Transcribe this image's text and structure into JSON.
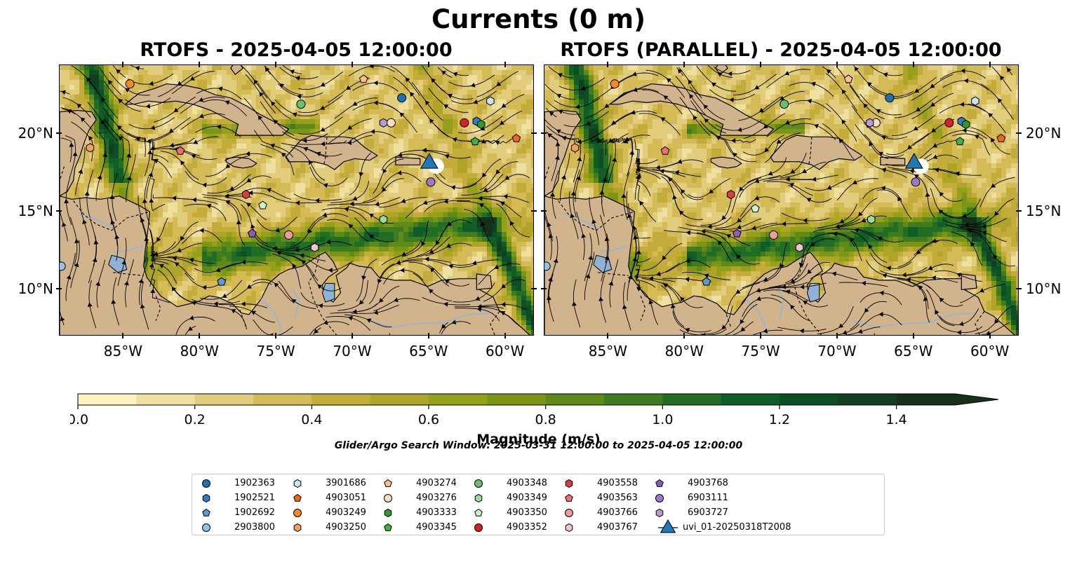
{
  "figure": {
    "suptitle": "Currents (0 m)",
    "panels": [
      {
        "id": "rtofs",
        "title": "RTOFS - 2025-04-05 12:00:00"
      },
      {
        "id": "rtofs-parallel",
        "title": "RTOFS (PARALLEL) - 2025-04-05 12:00:00"
      }
    ],
    "colors": {
      "land": "#d2b48c",
      "water": "#8fb2d8",
      "river": "#9fb4cc",
      "coast": "#000000"
    }
  },
  "map": {
    "lon_range": [
      -89.2,
      -58.1
    ],
    "lat_range": [
      7.0,
      24.4
    ],
    "lon_ticks": [
      {
        "value": -85,
        "label": "85°W"
      },
      {
        "value": -80,
        "label": "80°W"
      },
      {
        "value": -75,
        "label": "75°W"
      },
      {
        "value": -70,
        "label": "70°W"
      },
      {
        "value": -65,
        "label": "65°W"
      },
      {
        "value": -60,
        "label": "60°W"
      }
    ],
    "lat_ticks": [
      {
        "value": 20,
        "label": "20°N"
      },
      {
        "value": 15,
        "label": "15°N"
      },
      {
        "value": 10,
        "label": "10°N"
      }
    ]
  },
  "chart_data": {
    "type": "heatmap",
    "variable": "Current magnitude with streamlines",
    "colorbar": {
      "label": "Magnitude (m/s)",
      "min": 0.0,
      "max": 1.5,
      "extend": "max",
      "ticks": [
        {
          "value": 0.0,
          "label": "0.0"
        },
        {
          "value": 0.2,
          "label": "0.2"
        },
        {
          "value": 0.4,
          "label": "0.4"
        },
        {
          "value": 0.6,
          "label": "0.6"
        },
        {
          "value": 0.8,
          "label": "0.8"
        },
        {
          "value": 1.0,
          "label": "1.0"
        },
        {
          "value": 1.2,
          "label": "1.2"
        },
        {
          "value": 1.4,
          "label": "1.4"
        }
      ],
      "colors": [
        "#fbf2bf",
        "#efe0a0",
        "#e2cd7c",
        "#d4bb55",
        "#c4ac3a",
        "#aea427",
        "#94a01a",
        "#7a9614",
        "#5f8a19",
        "#3f7c1f",
        "#226d24",
        "#0f5e27",
        "#0d4e25",
        "#123f20",
        "#16301a"
      ]
    },
    "search_window": "Glider/Argo Search Window: 2025-03-31 12:00:00 to 2025-04-05 12:00:00",
    "legend_placement": "bottom-center",
    "platforms": [
      {
        "id": "1902363",
        "marker": "circle",
        "color": "#1f6fb4",
        "positions": [
          [
            -66.8,
            22.3
          ],
          [
            -66.6,
            22.3
          ]
        ]
      },
      {
        "id": "1902521",
        "marker": "hexagon",
        "color": "#2f7ec3",
        "positions": [
          [
            -61.9,
            20.8
          ],
          [
            -61.9,
            20.8
          ]
        ]
      },
      {
        "id": "1902692",
        "marker": "pentagon",
        "color": "#5a9bd4",
        "positions": [
          [
            -78.6,
            10.5
          ],
          [
            -78.6,
            10.5
          ]
        ]
      },
      {
        "id": "2903800",
        "marker": "circle",
        "color": "#8ec3ea",
        "positions": [
          [
            -89.1,
            11.5
          ],
          [
            -89.1,
            11.5
          ]
        ]
      },
      {
        "id": "3901686",
        "marker": "hexagon",
        "color": "#c8e4f8",
        "positions": [
          [
            -61.0,
            22.1
          ],
          [
            -61.0,
            22.1
          ]
        ]
      },
      {
        "id": "4903051",
        "marker": "pentagon",
        "color": "#ee6a10",
        "positions": [
          [
            -59.3,
            19.7
          ],
          [
            -59.3,
            19.7
          ]
        ]
      },
      {
        "id": "4903249",
        "marker": "circle",
        "color": "#f5882a",
        "positions": [
          [
            -84.6,
            23.2
          ],
          [
            -84.6,
            23.2
          ]
        ]
      },
      {
        "id": "4903250",
        "marker": "hexagon",
        "color": "#f8a055",
        "positions": [
          [
            -87.2,
            19.1
          ],
          [
            -87.2,
            19.1
          ]
        ]
      },
      {
        "id": "4903274",
        "marker": "pentagon",
        "color": "#fbbf88",
        "positions": [
          [
            -69.3,
            23.5
          ],
          [
            -69.3,
            23.5
          ]
        ]
      },
      {
        "id": "4903276",
        "marker": "circle",
        "color": "#fde0c4",
        "positions": [
          [
            -67.5,
            20.7
          ],
          [
            -67.5,
            20.7
          ]
        ]
      },
      {
        "id": "4903333",
        "marker": "hexagon",
        "color": "#2e9a2e",
        "positions": [
          [
            -61.6,
            20.6
          ],
          [
            -61.6,
            20.6
          ]
        ]
      },
      {
        "id": "4903345",
        "marker": "pentagon",
        "color": "#3db33d",
        "positions": [
          [
            -62.0,
            19.5
          ],
          [
            -62.0,
            19.5
          ]
        ]
      },
      {
        "id": "4903348",
        "marker": "circle",
        "color": "#66c466",
        "positions": [
          [
            -73.4,
            21.9
          ],
          [
            -73.5,
            21.9
          ]
        ]
      },
      {
        "id": "4903349",
        "marker": "hexagon",
        "color": "#99dd99",
        "positions": [
          [
            -68.0,
            14.5
          ],
          [
            -67.8,
            14.5
          ]
        ]
      },
      {
        "id": "4903350",
        "marker": "pentagon",
        "color": "#ccf5cc",
        "positions": [
          [
            -75.9,
            15.4
          ],
          [
            -75.4,
            15.2
          ]
        ]
      },
      {
        "id": "4903352",
        "marker": "circle",
        "color": "#d62222",
        "positions": [
          [
            -62.7,
            20.7
          ],
          [
            -62.7,
            20.7
          ]
        ]
      },
      {
        "id": "4903558",
        "marker": "hexagon",
        "color": "#d84040",
        "positions": [
          [
            -77.0,
            16.1
          ],
          [
            -77.0,
            16.1
          ]
        ]
      },
      {
        "id": "4903563",
        "marker": "pentagon",
        "color": "#ee7070",
        "positions": [
          [
            -81.3,
            18.9
          ],
          [
            -81.3,
            18.9
          ]
        ]
      },
      {
        "id": "4903766",
        "marker": "circle",
        "color": "#f29b9b",
        "positions": [
          [
            -74.2,
            13.5
          ],
          [
            -74.2,
            13.5
          ]
        ]
      },
      {
        "id": "4903767",
        "marker": "hexagon",
        "color": "#fac4cf",
        "positions": [
          [
            -72.5,
            12.7
          ],
          [
            -72.5,
            12.7
          ]
        ]
      },
      {
        "id": "4903768",
        "marker": "pentagon",
        "color": "#8a5cc0",
        "positions": [
          [
            -76.6,
            13.6
          ],
          [
            -76.6,
            13.6
          ]
        ]
      },
      {
        "id": "6903111",
        "marker": "circle",
        "color": "#9b78cc",
        "positions": [
          [
            -64.9,
            16.9
          ],
          [
            -64.9,
            16.9
          ]
        ]
      },
      {
        "id": "6903727",
        "marker": "hexagon",
        "color": "#b99ad9",
        "positions": [
          [
            -68.0,
            20.7
          ],
          [
            -67.9,
            20.7
          ]
        ]
      },
      {
        "id": "uvi_01-20250318T2008",
        "marker": "triangle",
        "color": "#1f77b4",
        "positions": [
          [
            -65.0,
            18.1
          ],
          [
            -65.0,
            18.1
          ]
        ]
      }
    ]
  }
}
